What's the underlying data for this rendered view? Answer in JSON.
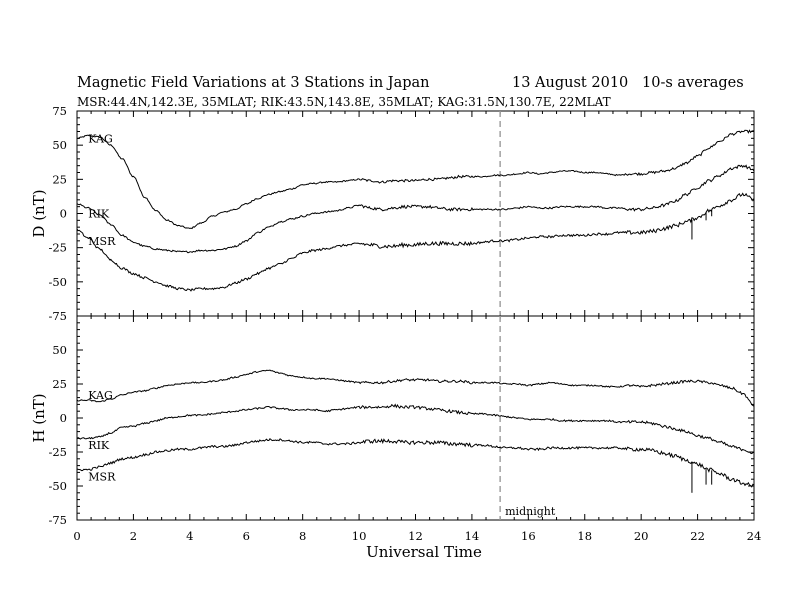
{
  "chart_data": {
    "type": "line",
    "title_left": "Magnetic Field Variations at 3 Stations in Japan",
    "title_date": "13  August  2010",
    "title_right": "10-s averages",
    "subtitle": "MSR:44.4N,142.3E, 35MLAT;   RIK:43.5N,143.8E, 35MLAT;   KAG:31.5N,130.7E, 22MLAT",
    "xlabel": "Universal Time",
    "xlim": [
      0,
      24
    ],
    "xticks": [
      "0",
      "2",
      "4",
      "6",
      "8",
      "10",
      "12",
      "14",
      "16",
      "18",
      "20",
      "22",
      "24"
    ],
    "midnight": {
      "x": 15,
      "label": "midnight",
      "style": "dashed gray"
    },
    "line_color": "#000000",
    "panels": [
      {
        "ylabel": "D (nT)",
        "ylim": [
          -75,
          75
        ],
        "yticks": [
          "75",
          "50",
          "25",
          "0",
          "-25",
          "-50",
          "-75"
        ],
        "series": [
          {
            "name": "KAG",
            "label_at": [
              0.4,
              55
            ],
            "x": [
              0,
              0.4,
              0.8,
              1.2,
              1.6,
              2.0,
              2.4,
              2.8,
              3.2,
              3.6,
              4.0,
              4.4,
              4.8,
              5.2,
              5.6,
              6.0,
              6.4,
              6.8,
              7.2,
              7.6,
              8.0,
              8.4,
              8.8,
              9.2,
              9.6,
              10.0,
              10.4,
              10.8,
              11.2,
              11.6,
              12.0,
              12.4,
              12.8,
              13.2,
              13.6,
              14.0,
              14.4,
              14.8,
              15.2,
              15.6,
              16.0,
              16.4,
              16.8,
              17.2,
              17.6,
              18.0,
              18.4,
              18.8,
              19.2,
              19.6,
              20.0,
              20.4,
              20.8,
              21.2,
              21.6,
              22.0,
              22.4,
              22.8,
              23.2,
              23.6,
              24.0
            ],
            "values": [
              55,
              57,
              56,
              50,
              40,
              27,
              12,
              2,
              -5,
              -9,
              -11,
              -7,
              -2,
              1,
              3,
              7,
              11,
              14,
              16,
              18,
              21,
              22,
              23,
              23,
              24,
              25,
              24,
              23,
              24,
              24,
              24,
              25,
              25,
              26,
              27,
              27,
              27,
              28,
              28,
              29,
              30,
              29,
              30,
              31,
              31,
              30,
              30,
              29,
              28,
              29,
              29,
              30,
              31,
              33,
              37,
              42,
              48,
              53,
              58,
              60,
              60
            ],
            "noise": 0.5
          },
          {
            "name": "RIK",
            "label_at": [
              0.4,
              0
            ],
            "x": [
              0,
              0.4,
              0.8,
              1.2,
              1.6,
              2.0,
              2.4,
              2.8,
              3.2,
              3.6,
              4.0,
              4.4,
              4.8,
              5.2,
              5.6,
              6.0,
              6.4,
              6.8,
              7.2,
              7.6,
              8.0,
              8.4,
              8.8,
              9.2,
              9.6,
              10.0,
              10.4,
              10.8,
              11.2,
              11.6,
              12.0,
              12.4,
              12.8,
              13.2,
              13.6,
              14.0,
              14.4,
              14.8,
              15.2,
              15.6,
              16.0,
              16.4,
              16.8,
              17.2,
              17.6,
              18.0,
              18.4,
              18.8,
              19.2,
              19.6,
              20.0,
              20.4,
              20.8,
              21.2,
              21.6,
              22.0,
              22.4,
              22.8,
              23.2,
              23.6,
              24.0
            ],
            "values": [
              7,
              4,
              -1,
              -8,
              -16,
              -21,
              -24,
              -26,
              -27,
              -28,
              -28,
              -27,
              -27,
              -26,
              -24,
              -20,
              -14,
              -10,
              -6,
              -4,
              -2,
              0,
              1,
              2,
              4,
              6,
              4,
              3,
              4,
              5,
              5,
              5,
              4,
              3,
              3,
              3,
              3,
              3,
              3,
              4,
              5,
              4,
              4,
              5,
              5,
              5,
              5,
              4,
              4,
              3,
              3,
              4,
              6,
              9,
              14,
              19,
              24,
              28,
              33,
              35,
              32
            ],
            "noise": 0.6
          },
          {
            "name": "MSR",
            "label_at": [
              0.4,
              -20
            ],
            "x": [
              0,
              0.4,
              0.8,
              1.2,
              1.6,
              2.0,
              2.4,
              2.8,
              3.2,
              3.6,
              4.0,
              4.4,
              4.8,
              5.2,
              5.6,
              6.0,
              6.4,
              6.8,
              7.2,
              7.6,
              8.0,
              8.4,
              8.8,
              9.2,
              9.6,
              10.0,
              10.4,
              10.8,
              11.2,
              11.6,
              12.0,
              12.4,
              12.8,
              13.2,
              13.6,
              14.0,
              14.4,
              14.8,
              15.2,
              15.6,
              16.0,
              16.4,
              16.8,
              17.2,
              17.6,
              18.0,
              18.4,
              18.8,
              19.2,
              19.6,
              20.0,
              20.4,
              20.8,
              21.2,
              21.6,
              22.0,
              22.4,
              22.8,
              23.2,
              23.6,
              24.0
            ],
            "values": [
              -12,
              -18,
              -26,
              -34,
              -40,
              -44,
              -47,
              -50,
              -53,
              -55,
              -56,
              -55,
              -55,
              -54,
              -51,
              -48,
              -44,
              -40,
              -37,
              -33,
              -29,
              -27,
              -26,
              -24,
              -23,
              -22,
              -23,
              -24,
              -24,
              -23,
              -23,
              -22,
              -22,
              -22,
              -22,
              -22,
              -21,
              -20,
              -20,
              -19,
              -18,
              -17,
              -17,
              -16,
              -16,
              -16,
              -15,
              -15,
              -14,
              -14,
              -14,
              -13,
              -11,
              -9,
              -6,
              -3,
              2,
              6,
              10,
              14,
              10
            ],
            "noise": 0.8,
            "spikes": [
              [
                21.8,
                -19
              ],
              [
                22.3,
                -5
              ],
              [
                22.5,
                -2
              ]
            ]
          }
        ]
      },
      {
        "ylabel": "H (nT)",
        "ylim": [
          -75,
          75
        ],
        "yticks": [
          "75",
          "50",
          "25",
          "0",
          "-25",
          "-50",
          "-75"
        ],
        "series": [
          {
            "name": "KAG",
            "label_at": [
              0.4,
              17
            ],
            "x": [
              0,
              0.4,
              0.8,
              1.2,
              1.6,
              2.0,
              2.4,
              2.8,
              3.2,
              3.6,
              4.0,
              4.4,
              4.8,
              5.2,
              5.6,
              6.0,
              6.4,
              6.8,
              7.2,
              7.6,
              8.0,
              8.4,
              8.8,
              9.2,
              9.6,
              10.0,
              10.4,
              10.8,
              11.2,
              11.6,
              12.0,
              12.4,
              12.8,
              13.2,
              13.6,
              14.0,
              14.4,
              14.8,
              15.2,
              15.6,
              16.0,
              16.4,
              16.8,
              17.2,
              17.6,
              18.0,
              18.4,
              18.8,
              19.2,
              19.6,
              20.0,
              20.4,
              20.8,
              21.2,
              21.6,
              22.0,
              22.4,
              22.8,
              23.2,
              23.6,
              24.0
            ],
            "values": [
              13,
              13,
              12,
              14,
              17,
              19,
              20,
              22,
              24,
              25,
              26,
              26,
              27,
              28,
              30,
              32,
              34,
              35,
              33,
              31,
              30,
              29,
              29,
              28,
              27,
              26,
              26,
              26,
              27,
              28,
              28,
              28,
              27,
              27,
              27,
              26,
              26,
              26,
              25,
              25,
              24,
              25,
              26,
              25,
              24,
              24,
              24,
              23,
              23,
              24,
              23,
              24,
              25,
              26,
              27,
              27,
              26,
              24,
              22,
              18,
              9
            ],
            "noise": 0.5
          },
          {
            "name": "RIK",
            "label_at": [
              0.4,
              -20
            ],
            "x": [
              0,
              0.4,
              0.8,
              1.2,
              1.6,
              2.0,
              2.4,
              2.8,
              3.2,
              3.6,
              4.0,
              4.4,
              4.8,
              5.2,
              5.6,
              6.0,
              6.4,
              6.8,
              7.2,
              7.6,
              8.0,
              8.4,
              8.8,
              9.2,
              9.6,
              10.0,
              10.4,
              10.8,
              11.2,
              11.6,
              12.0,
              12.4,
              12.8,
              13.2,
              13.6,
              14.0,
              14.4,
              14.8,
              15.2,
              15.6,
              16.0,
              16.4,
              16.8,
              17.2,
              17.6,
              18.0,
              18.4,
              18.8,
              19.2,
              19.6,
              20.0,
              20.4,
              20.8,
              21.2,
              21.6,
              22.0,
              22.4,
              22.8,
              23.2,
              23.6,
              24.0
            ],
            "values": [
              -15,
              -15,
              -14,
              -11,
              -7,
              -6,
              -4,
              -2,
              0,
              1,
              2,
              2,
              3,
              4,
              5,
              6,
              7,
              8,
              7,
              6,
              6,
              6,
              5,
              6,
              7,
              8,
              8,
              8,
              9,
              8,
              8,
              7,
              6,
              5,
              4,
              3,
              3,
              2,
              1,
              0,
              -1,
              -1,
              -1,
              -2,
              -2,
              -2,
              -2,
              -2,
              -3,
              -3,
              -3,
              -4,
              -6,
              -8,
              -10,
              -13,
              -15,
              -18,
              -21,
              -23,
              -26
            ],
            "noise": 0.6
          },
          {
            "name": "MSR",
            "label_at": [
              0.4,
              -43
            ],
            "x": [
              0,
              0.4,
              0.8,
              1.2,
              1.6,
              2.0,
              2.4,
              2.8,
              3.2,
              3.6,
              4.0,
              4.4,
              4.8,
              5.2,
              5.6,
              6.0,
              6.4,
              6.8,
              7.2,
              7.6,
              8.0,
              8.4,
              8.8,
              9.2,
              9.6,
              10.0,
              10.4,
              10.8,
              11.2,
              11.6,
              12.0,
              12.4,
              12.8,
              13.2,
              13.6,
              14.0,
              14.4,
              14.8,
              15.2,
              15.6,
              16.0,
              16.4,
              16.8,
              17.2,
              17.6,
              18.0,
              18.4,
              18.8,
              19.2,
              19.6,
              20.0,
              20.4,
              20.8,
              21.2,
              21.6,
              22.0,
              22.4,
              22.8,
              23.2,
              23.6,
              24.0
            ],
            "values": [
              -38,
              -38,
              -36,
              -33,
              -30,
              -29,
              -27,
              -25,
              -24,
              -23,
              -23,
              -22,
              -21,
              -21,
              -20,
              -18,
              -17,
              -16,
              -16,
              -17,
              -18,
              -18,
              -19,
              -19,
              -19,
              -18,
              -17,
              -17,
              -17,
              -18,
              -18,
              -18,
              -18,
              -19,
              -19,
              -20,
              -20,
              -21,
              -22,
              -22,
              -23,
              -23,
              -22,
              -22,
              -22,
              -22,
              -22,
              -22,
              -22,
              -23,
              -23,
              -24,
              -26,
              -28,
              -31,
              -34,
              -38,
              -41,
              -45,
              -48,
              -50
            ],
            "noise": 0.8,
            "spikes": [
              [
                21.8,
                -55
              ],
              [
                22.3,
                -49
              ],
              [
                22.5,
                -49
              ]
            ]
          }
        ]
      }
    ]
  }
}
